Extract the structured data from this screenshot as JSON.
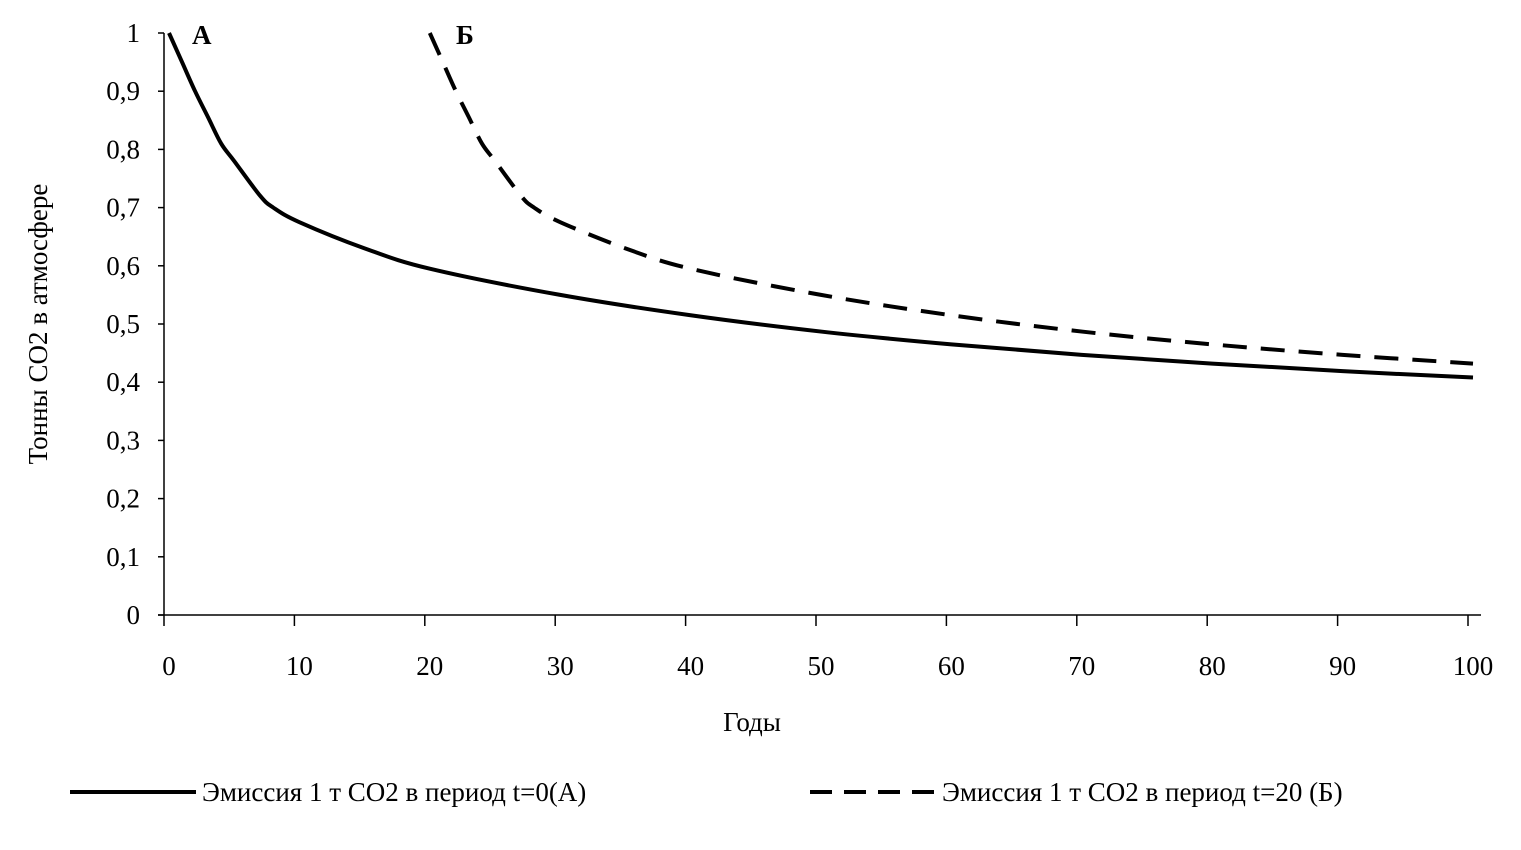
{
  "chart_data": {
    "type": "line",
    "title": "",
    "xlabel": "Годы",
    "ylabel": "Тонны CO2 в атмосфере",
    "xlim": [
      0,
      100
    ],
    "ylim": [
      0,
      1
    ],
    "x_ticks": [
      "0",
      "10",
      "20",
      "30",
      "40",
      "50",
      "60",
      "70",
      "80",
      "90",
      "100"
    ],
    "y_ticks": [
      "0",
      "0,1",
      "0,2",
      "0,3",
      "0,4",
      "0,5",
      "0,6",
      "0,7",
      "0,8",
      "0,9",
      "1"
    ],
    "grid": false,
    "legend_position": "bottom",
    "annotations": [
      "А",
      "Б"
    ],
    "series": [
      {
        "name": "Эмиссия 1 т CO2 в период t=0(А)",
        "style": "solid",
        "color": "#000000",
        "x": [
          0,
          1,
          2,
          3,
          4,
          5,
          7,
          8,
          10,
          15,
          20,
          30,
          40,
          50,
          60,
          70,
          80,
          90,
          100
        ],
        "y": [
          1,
          0.95,
          0.9,
          0.855,
          0.81,
          0.78,
          0.72,
          0.7,
          0.675,
          0.63,
          0.595,
          0.55,
          0.515,
          0.487,
          0.465,
          0.447,
          0.432,
          0.419,
          0.408
        ]
      },
      {
        "name": "Эмиссия 1 т CO2 в период t=20 (Б)",
        "style": "dashed",
        "color": "#000000",
        "x": [
          20,
          21,
          22,
          23,
          24,
          25,
          27,
          28,
          30,
          35,
          40,
          50,
          60,
          70,
          80,
          90,
          100
        ],
        "y": [
          1,
          0.95,
          0.9,
          0.855,
          0.81,
          0.78,
          0.72,
          0.7,
          0.675,
          0.63,
          0.595,
          0.55,
          0.515,
          0.487,
          0.465,
          0.447,
          0.432
        ]
      }
    ]
  }
}
